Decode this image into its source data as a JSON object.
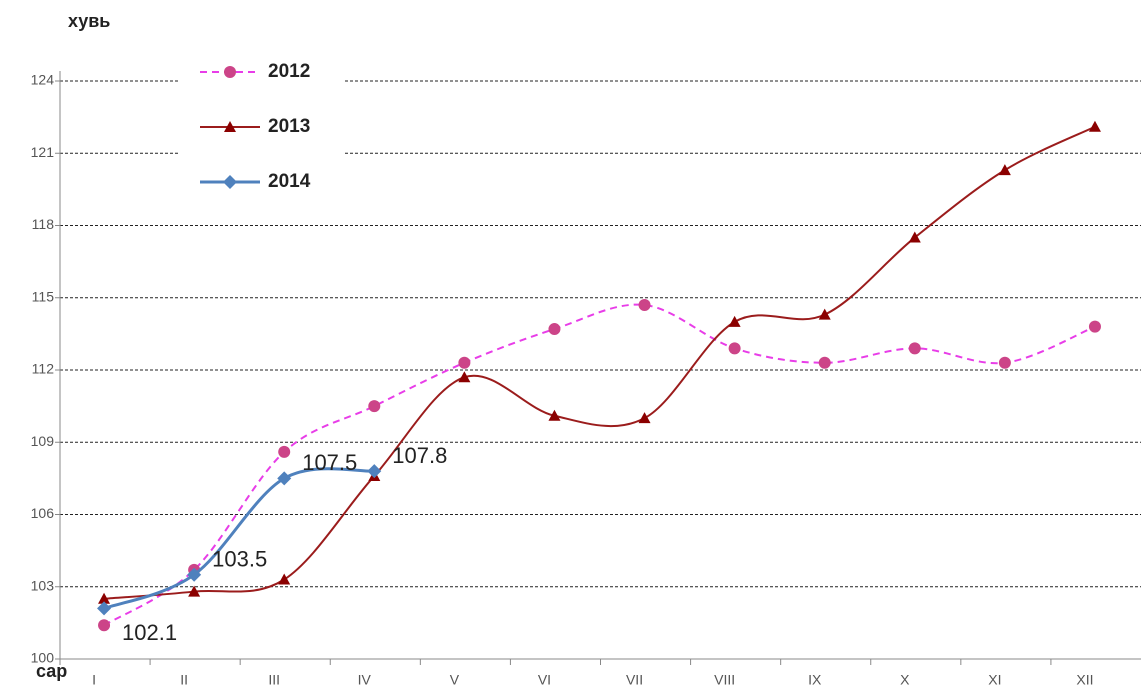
{
  "chart_data": {
    "type": "line",
    "y_label": "хувь",
    "x_label": "сар",
    "categories": [
      "I",
      "II",
      "III",
      "IV",
      "V",
      "VI",
      "VII",
      "VIII",
      "IX",
      "X",
      "XI",
      "XII"
    ],
    "series": [
      {
        "name": "2012",
        "color": "#e83de8",
        "marker_color": "#cc4488",
        "marker": "circle",
        "dash": true,
        "values": [
          101.4,
          103.7,
          108.6,
          110.5,
          112.3,
          113.7,
          114.7,
          112.9,
          112.3,
          112.9,
          112.3,
          113.8
        ]
      },
      {
        "name": "2013",
        "color": "#9b1c1c",
        "marker_color": "#8b0000",
        "marker": "triangle",
        "dash": false,
        "values": [
          102.5,
          102.8,
          103.3,
          107.6,
          111.7,
          110.1,
          110.0,
          114.0,
          114.3,
          117.5,
          120.3,
          122.1
        ]
      },
      {
        "name": "2014",
        "color": "#4f81bd",
        "marker_color": "#4f81bd",
        "marker": "diamond",
        "dash": false,
        "show_labels": true,
        "values": [
          102.1,
          103.5,
          107.5,
          107.8,
          null,
          null,
          null,
          null,
          null,
          null,
          null,
          null
        ]
      }
    ],
    "ylim": [
      100,
      124
    ],
    "yticks": [
      100,
      103,
      106,
      109,
      112,
      115,
      118,
      121,
      124
    ],
    "grid": true,
    "legend": "top-left"
  }
}
